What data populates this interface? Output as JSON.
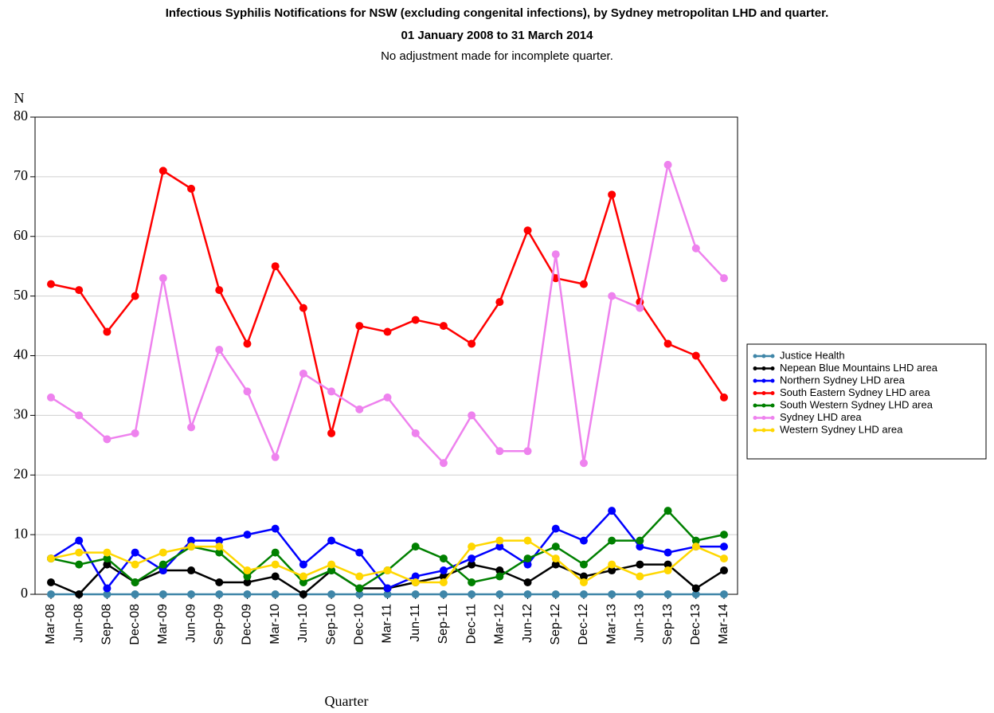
{
  "chart_data": {
    "type": "line",
    "title": "Infectious Syphilis Notifications for NSW (excluding congenital infections), by Sydney metropolitan LHD and quarter.",
    "subtitle": "01 January 2008 to 31 March 2014",
    "note": "No adjustment made for incomplete quarter.",
    "y_label": "N",
    "x_label": "Quarter",
    "categories": [
      "Mar-08",
      "Jun-08",
      "Sep-08",
      "Dec-08",
      "Mar-09",
      "Jun-09",
      "Sep-09",
      "Dec-09",
      "Mar-10",
      "Jun-10",
      "Sep-10",
      "Dec-10",
      "Mar-11",
      "Jun-11",
      "Sep-11",
      "Dec-11",
      "Mar-12",
      "Jun-12",
      "Sep-12",
      "Dec-12",
      "Mar-13",
      "Jun-13",
      "Sep-13",
      "Dec-13",
      "Mar-14"
    ],
    "series": [
      {
        "name": "Justice Health",
        "color": "#3f86a8",
        "values": [
          0,
          0,
          0,
          0,
          0,
          0,
          0,
          0,
          0,
          0,
          0,
          0,
          0,
          0,
          0,
          0,
          0,
          0,
          0,
          0,
          0,
          0,
          0,
          0,
          0
        ]
      },
      {
        "name": "Nepean Blue Mountains LHD area",
        "color": "#000000",
        "values": [
          2,
          0,
          5,
          2,
          4,
          4,
          2,
          2,
          3,
          0,
          4,
          1,
          1,
          2,
          3,
          5,
          4,
          2,
          5,
          3,
          4,
          5,
          5,
          1,
          4
        ]
      },
      {
        "name": "Northern Sydney LHD area",
        "color": "#0000ff",
        "values": [
          6,
          9,
          1,
          7,
          4,
          9,
          9,
          10,
          11,
          5,
          9,
          7,
          1,
          3,
          4,
          6,
          8,
          5,
          11,
          9,
          14,
          8,
          7,
          8,
          8
        ]
      },
      {
        "name": "South Eastern Sydney LHD area",
        "color": "#ff0000",
        "values": [
          52,
          51,
          44,
          50,
          71,
          68,
          51,
          42,
          55,
          48,
          27,
          45,
          44,
          46,
          45,
          42,
          49,
          61,
          53,
          52,
          67,
          49,
          42,
          40,
          33
        ]
      },
      {
        "name": "South Western Sydney LHD area",
        "color": "#008000",
        "values": [
          6,
          5,
          6,
          2,
          5,
          8,
          7,
          3,
          7,
          2,
          4,
          1,
          4,
          8,
          6,
          2,
          3,
          6,
          8,
          5,
          9,
          9,
          14,
          9,
          10
        ]
      },
      {
        "name": "Sydney LHD area",
        "color": "#ee82ee",
        "values": [
          33,
          30,
          26,
          27,
          53,
          28,
          41,
          34,
          23,
          37,
          34,
          31,
          33,
          27,
          22,
          30,
          24,
          24,
          57,
          22,
          50,
          48,
          72,
          58,
          53
        ]
      },
      {
        "name": "Western Sydney LHD area",
        "color": "#ffd700",
        "values": [
          6,
          7,
          7,
          5,
          7,
          8,
          8,
          4,
          5,
          3,
          5,
          3,
          4,
          2,
          2,
          8,
          9,
          9,
          6,
          2,
          5,
          3,
          4,
          8,
          6
        ]
      }
    ],
    "ylim": [
      0,
      80
    ],
    "yticks": [
      0,
      10,
      20,
      30,
      40,
      50,
      60,
      70,
      80
    ],
    "grid": true,
    "legend": "right"
  }
}
